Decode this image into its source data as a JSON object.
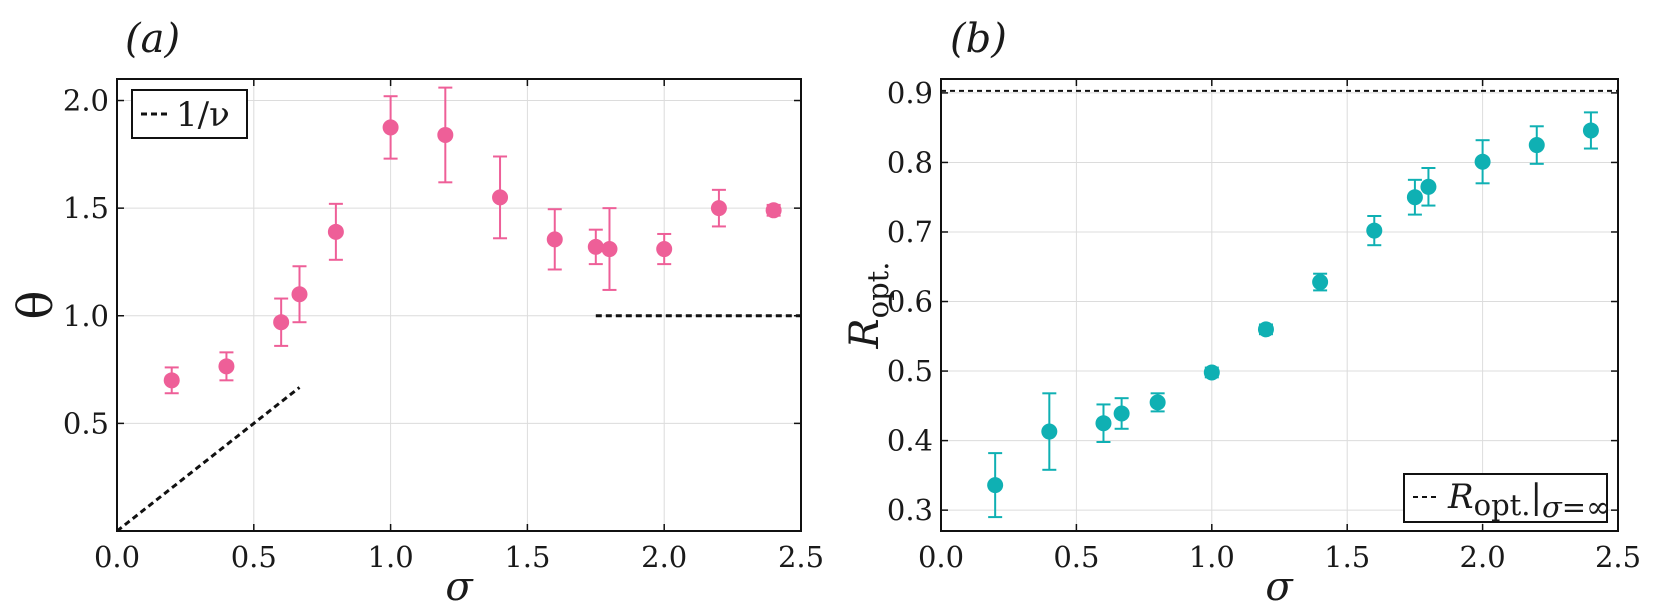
{
  "chart_data": [
    {
      "type": "scatter",
      "panel_label": "(a)",
      "xlabel": "σ",
      "ylabel": "θ",
      "xlim": [
        0.0,
        2.5
      ],
      "ylim": [
        0.0,
        2.1
      ],
      "x_ticks": [
        "0.0",
        "0.5",
        "1.0",
        "1.5",
        "2.0",
        "2.5"
      ],
      "y_ticks": [
        "0.5",
        "1.0",
        "1.5",
        "2.0"
      ],
      "grid": true,
      "legend": {
        "position": "top-left",
        "entries": [
          "1/ν"
        ]
      },
      "marker_color": "#ee5f98",
      "series": [
        {
          "name": "",
          "points": [
            {
              "x": 0.2,
              "y": 0.7,
              "err": 0.06
            },
            {
              "x": 0.4,
              "y": 0.765,
              "err": 0.065
            },
            {
              "x": 0.6,
              "y": 0.97,
              "err": 0.11
            },
            {
              "x": 0.667,
              "y": 1.1,
              "err": 0.13
            },
            {
              "x": 0.8,
              "y": 1.39,
              "err": 0.13
            },
            {
              "x": 1.0,
              "y": 1.875,
              "err": 0.145
            },
            {
              "x": 1.2,
              "y": 1.84,
              "err": 0.22
            },
            {
              "x": 1.4,
              "y": 1.55,
              "err": 0.19
            },
            {
              "x": 1.6,
              "y": 1.355,
              "err": 0.14
            },
            {
              "x": 1.75,
              "y": 1.32,
              "err": 0.08
            },
            {
              "x": 1.8,
              "y": 1.31,
              "err": 0.19
            },
            {
              "x": 2.0,
              "y": 1.31,
              "err": 0.07
            },
            {
              "x": 2.2,
              "y": 1.5,
              "err": 0.085
            },
            {
              "x": 2.4,
              "y": 1.49,
              "err": 0.025
            }
          ]
        }
      ],
      "reference_lines": [
        {
          "label": "1/ν",
          "x": [
            0.0,
            0.667
          ],
          "y": [
            0.0,
            0.667
          ]
        },
        {
          "label": "1/ν",
          "x": [
            1.75,
            2.5
          ],
          "y": [
            1.0,
            1.0
          ]
        }
      ]
    },
    {
      "type": "scatter",
      "panel_label": "(b)",
      "xlabel": "σ",
      "ylabel": "R_opt.",
      "xlim": [
        0.0,
        2.5
      ],
      "ylim": [
        0.27,
        0.92
      ],
      "x_ticks": [
        "0.0",
        "0.5",
        "1.0",
        "1.5",
        "2.0",
        "2.5"
      ],
      "y_ticks": [
        "0.3",
        "0.4",
        "0.5",
        "0.6",
        "0.7",
        "0.8",
        "0.9"
      ],
      "grid": true,
      "legend": {
        "position": "bottom-right",
        "entries": [
          "R_opt.|σ=∞"
        ]
      },
      "marker_color": "#0fb0b3",
      "series": [
        {
          "name": "",
          "points": [
            {
              "x": 0.2,
              "y": 0.336,
              "err": 0.046
            },
            {
              "x": 0.4,
              "y": 0.413,
              "err": 0.055
            },
            {
              "x": 0.6,
              "y": 0.425,
              "err": 0.027
            },
            {
              "x": 0.667,
              "y": 0.439,
              "err": 0.022
            },
            {
              "x": 0.8,
              "y": 0.455,
              "err": 0.013
            },
            {
              "x": 1.0,
              "y": 0.498,
              "err": 0.007
            },
            {
              "x": 1.2,
              "y": 0.56,
              "err": 0.007
            },
            {
              "x": 1.4,
              "y": 0.628,
              "err": 0.012
            },
            {
              "x": 1.6,
              "y": 0.702,
              "err": 0.021
            },
            {
              "x": 1.75,
              "y": 0.75,
              "err": 0.025
            },
            {
              "x": 1.8,
              "y": 0.765,
              "err": 0.027
            },
            {
              "x": 2.0,
              "y": 0.801,
              "err": 0.031
            },
            {
              "x": 2.2,
              "y": 0.825,
              "err": 0.027
            },
            {
              "x": 2.4,
              "y": 0.846,
              "err": 0.026
            }
          ]
        }
      ],
      "reference_lines": [
        {
          "label": "R_opt.|σ=∞",
          "x": [
            0.0,
            2.5
          ],
          "y": [
            0.903,
            0.903
          ]
        }
      ]
    }
  ]
}
